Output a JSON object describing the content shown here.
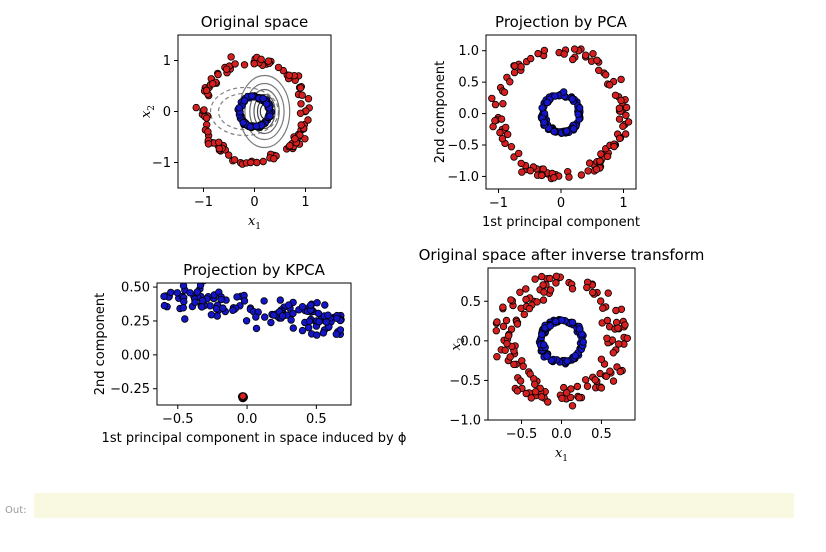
{
  "chart_data": [
    {
      "type": "scatter",
      "title": "Original space",
      "xlabel": "x1",
      "ylabel": "x2",
      "xlim": [
        -1.5,
        1.5
      ],
      "ylim": [
        -1.5,
        1.5
      ],
      "xticks": [
        -1,
        0,
        1
      ],
      "yticks": [
        -1,
        0,
        1
      ],
      "tick_labels_x": [
        "−1",
        "0",
        "1"
      ],
      "tick_labels_y": [
        "−1",
        "0",
        "1"
      ],
      "series": [
        {
          "color": "#d62020",
          "shape": "circle",
          "center": [
            0,
            0
          ],
          "radius": 1.0,
          "count": 120
        },
        {
          "color": "#1515c8",
          "shape": "circle",
          "center": [
            0,
            0
          ],
          "radius": 0.3,
          "count": 100
        }
      ],
      "overlay": "contour lines of projection (grey, dashed for negative levels)"
    },
    {
      "type": "scatter",
      "title": "Projection by PCA",
      "xlabel": "1st principal component",
      "ylabel": "2nd component",
      "xlim": [
        -1.2,
        1.2
      ],
      "ylim": [
        -1.2,
        1.25
      ],
      "xticks": [
        -1,
        0,
        1
      ],
      "yticks": [
        -1.0,
        -0.5,
        0.0,
        0.5,
        1.0
      ],
      "tick_labels_x": [
        "−1",
        "0",
        "1"
      ],
      "tick_labels_y": [
        "−1.0",
        "−0.5",
        "0.0",
        "0.5",
        "1.0"
      ],
      "series": [
        {
          "color": "#d62020",
          "shape": "circle",
          "center": [
            0,
            0
          ],
          "radius": 1.0,
          "count": 120
        },
        {
          "color": "#1515c8",
          "shape": "circle",
          "center": [
            0,
            0
          ],
          "radius": 0.3,
          "count": 100
        }
      ]
    },
    {
      "type": "scatter",
      "title": "Projection by KPCA",
      "xlabel": "1st principal component in space induced by ϕ",
      "ylabel": "2nd component",
      "xlim": [
        -0.65,
        0.75
      ],
      "ylim": [
        -0.37,
        0.53
      ],
      "xticks": [
        -0.5,
        0.0,
        0.5
      ],
      "yticks": [
        -0.25,
        0.0,
        0.25,
        0.5
      ],
      "tick_labels_x": [
        "−0.5",
        "0.0",
        "0.5"
      ],
      "tick_labels_y": [
        "−0.25",
        "0.00",
        "0.25",
        "0.50"
      ],
      "series": [
        {
          "color": "#1515c8",
          "shape": "band",
          "x_range": [
            -0.6,
            0.7
          ],
          "y_start": 0.43,
          "y_end": 0.24,
          "count": 140
        },
        {
          "color": "#d62020",
          "shape": "cluster",
          "center": [
            -0.03,
            -0.31
          ],
          "count": 120
        }
      ]
    },
    {
      "type": "scatter",
      "title": "Original space after inverse transform",
      "xlabel": "x1",
      "ylabel": "x2",
      "xlim": [
        -0.92,
        0.92
      ],
      "ylim": [
        -1.0,
        0.92
      ],
      "xticks": [
        -0.5,
        0.0,
        0.5
      ],
      "yticks": [
        -1.0,
        -0.5,
        0.0,
        0.5
      ],
      "tick_labels_x": [
        "−0.5",
        "0.0",
        "0.5"
      ],
      "tick_labels_y": [
        "−1.0",
        "−0.5",
        "0.0",
        "0.5"
      ],
      "series": [
        {
          "color": "#d62020",
          "shape": "ring",
          "center": [
            0,
            0
          ],
          "radius_range": [
            0.55,
            0.85
          ],
          "count": 150
        },
        {
          "color": "#1515c8",
          "shape": "circle",
          "center": [
            0,
            0
          ],
          "radius": 0.26,
          "count": 110
        }
      ]
    }
  ],
  "output": {
    "label": "Out:"
  }
}
